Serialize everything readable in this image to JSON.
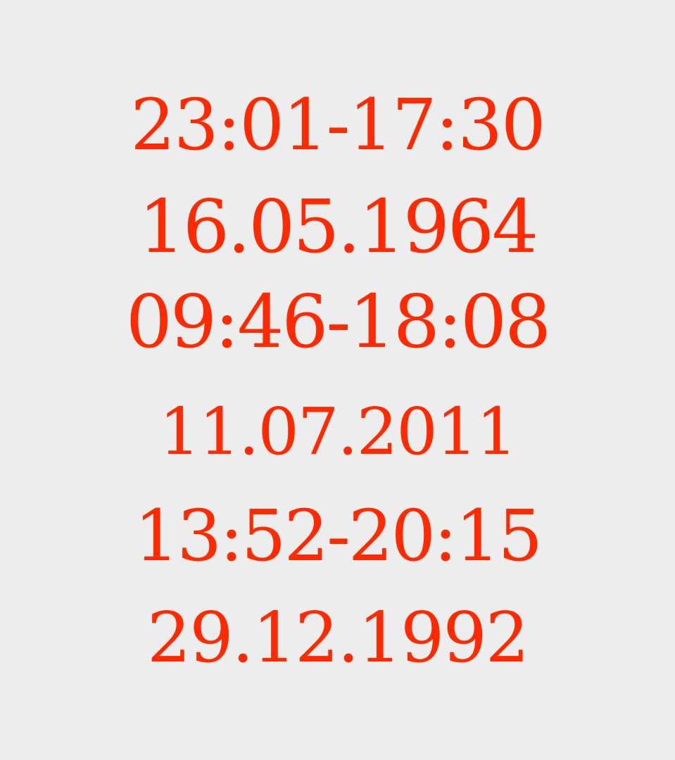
{
  "lines": [
    "23:01-17:30",
    "16.05.1964",
    "09:46-18:08",
    "11.07.2011",
    "13:52-20:15",
    "29.12.1992"
  ],
  "colors": {
    "background": "#ededed",
    "text": "#ff2a00"
  }
}
